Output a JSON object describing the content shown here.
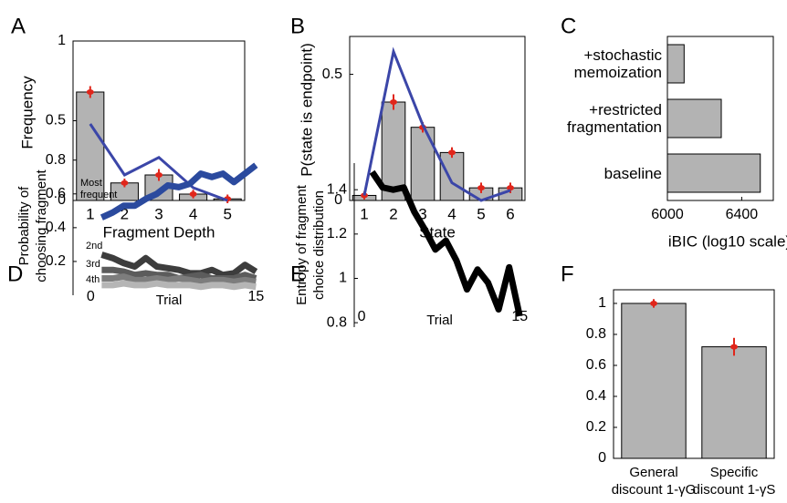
{
  "chart_data": [
    {
      "type": "bar",
      "panel_label": "A",
      "x_label": "Fragment Depth",
      "y_label": "Frequency",
      "categories": [
        "1",
        "2",
        "3",
        "4",
        "5"
      ],
      "values": [
        0.68,
        0.11,
        0.16,
        0.04,
        0.01
      ],
      "errors": [
        0.02,
        0.01,
        0.02,
        0.01,
        0.01
      ],
      "model_values": [
        0.48,
        0.16,
        0.27,
        0.08,
        0.0
      ],
      "color": "#b3b3b3",
      "model_color": "#3b46a8",
      "error_color": "#e0261b",
      "ylim": [
        0,
        1
      ],
      "yticks": [
        0,
        0.5,
        1
      ]
    },
    {
      "type": "bar",
      "panel_label": "B",
      "x_label": "State",
      "y_label": "P(state is endpoint)",
      "categories": [
        "1",
        "2",
        "3",
        "4",
        "5",
        "6"
      ],
      "values": [
        0.02,
        0.39,
        0.29,
        0.19,
        0.05,
        0.05
      ],
      "errors": [
        0.005,
        0.02,
        0.01,
        0.01,
        0.01,
        0.01
      ],
      "model_values": [
        0.02,
        0.59,
        0.3,
        0.07,
        0.0,
        0.04
      ],
      "color": "#b3b3b3",
      "model_color": "#3b46a8",
      "error_color": "#e0261b",
      "ylim": [
        0,
        0.65
      ],
      "yticks": [
        0,
        0.5
      ]
    },
    {
      "type": "hbar",
      "panel_label": "C",
      "x_label": "iBIC (log10 scale)",
      "categories": [
        "+stochastic memoization",
        "+restricted fragmentation",
        "baseline"
      ],
      "values": [
        6090,
        6290,
        6500
      ],
      "color": "#b3b3b3",
      "xlim": [
        6000,
        6570
      ],
      "xticks": [
        6000,
        6400
      ]
    },
    {
      "type": "line",
      "panel_label": "D",
      "x_label": "Trial",
      "y_label": "Probability of choosing fragment",
      "x": [
        1,
        2,
        3,
        4,
        5,
        6,
        7,
        8,
        9,
        10,
        11,
        12,
        13,
        14,
        15
      ],
      "series": [
        {
          "name": "Most frequent",
          "color": "#2b4a9e",
          "values": [
            0.46,
            0.49,
            0.53,
            0.53,
            0.57,
            0.6,
            0.65,
            0.64,
            0.66,
            0.72,
            0.7,
            0.72,
            0.67,
            0.72,
            0.77
          ]
        },
        {
          "name": "2nd",
          "color": "#3d3d3d",
          "values": [
            0.24,
            0.22,
            0.19,
            0.17,
            0.22,
            0.17,
            0.16,
            0.15,
            0.13,
            0.13,
            0.15,
            0.12,
            0.13,
            0.18,
            0.14
          ]
        },
        {
          "name": "3rd",
          "color": "#5c5c5c",
          "values": [
            0.15,
            0.15,
            0.14,
            0.12,
            0.13,
            0.12,
            0.12,
            0.1,
            0.11,
            0.12,
            0.1,
            0.1,
            0.1,
            0.12,
            0.1
          ]
        },
        {
          "name": "4th",
          "color": "#7d7d7d",
          "values": [
            0.1,
            0.1,
            0.11,
            0.09,
            0.09,
            0.1,
            0.09,
            0.1,
            0.09,
            0.08,
            0.09,
            0.09,
            0.08,
            0.09,
            0.08
          ]
        },
        {
          "color": "#b5b5b5",
          "values": [
            0.06,
            0.06,
            0.07,
            0.06,
            0.06,
            0.07,
            0.06,
            0.06,
            0.06,
            0.05,
            0.06,
            0.06,
            0.05,
            0.06,
            0.05
          ]
        }
      ],
      "xlim": [
        -1.6,
        15.8
      ],
      "xticks": [
        0,
        15
      ],
      "ylim": [
        0,
        0.82
      ],
      "yticks": [
        0.2,
        0.4,
        0.6,
        0.8
      ]
    },
    {
      "type": "line",
      "panel_label": "E",
      "x_label": "Trial",
      "y_label": "Entropy of fragment choice distribution",
      "x": [
        1,
        2,
        3,
        4,
        5,
        6,
        7,
        8,
        9,
        10,
        11,
        12,
        13,
        14,
        15
      ],
      "series": [
        {
          "color": "#000000",
          "values": [
            1.48,
            1.41,
            1.4,
            1.41,
            1.3,
            1.22,
            1.13,
            1.17,
            1.08,
            0.95,
            1.04,
            0.98,
            0.86,
            1.05,
            0.83
          ]
        }
      ],
      "xlim": [
        -0.7,
        15.5
      ],
      "xticks": [
        0,
        15
      ],
      "ylim": [
        0.78,
        1.52
      ],
      "yticks": [
        0.8,
        1,
        1.2,
        1.4
      ]
    },
    {
      "type": "bar",
      "panel_label": "F",
      "categories": [
        "General discount 1-γG",
        "Specific discount 1-γS"
      ],
      "values": [
        1.0,
        0.72
      ],
      "errors": [
        0.01,
        0.04
      ],
      "color": "#b3b3b3",
      "error_color": "#e0261b",
      "ylim": [
        0,
        1.088
      ],
      "yticks": [
        0,
        0.2,
        0.4,
        0.6,
        0.8,
        1
      ]
    }
  ]
}
